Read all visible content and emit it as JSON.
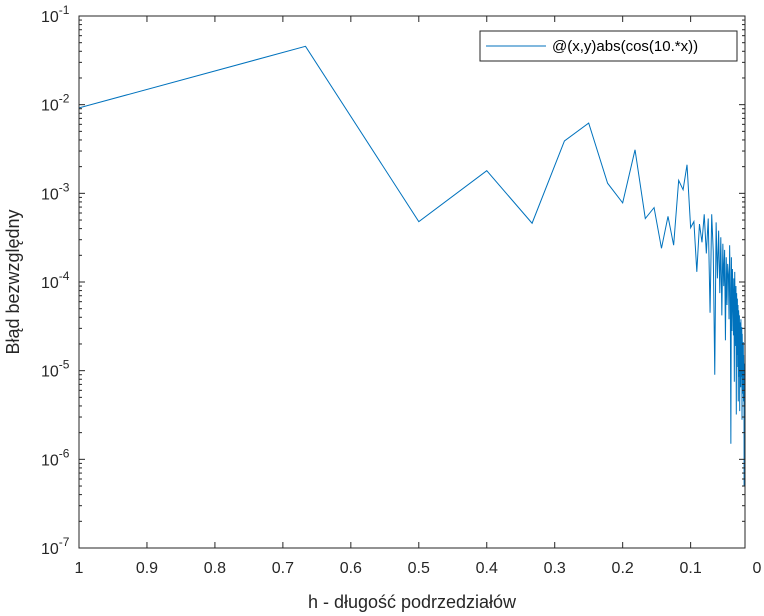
{
  "chart_data": {
    "type": "line",
    "title": "",
    "xlabel": "h - długość podrzedziałów",
    "ylabel": "Błąd bezwzględny",
    "x_scale": "linear",
    "x_reversed": true,
    "xlim": [
      0.02,
      1
    ],
    "y_scale": "log",
    "ylim": [
      1e-07,
      0.1
    ],
    "grid": false,
    "legend_position": "top-right",
    "x_ticks": [
      {
        "value": 1,
        "label": "1"
      },
      {
        "value": 0.9,
        "label": "0.9"
      },
      {
        "value": 0.8,
        "label": "0.8"
      },
      {
        "value": 0.7,
        "label": "0.7"
      },
      {
        "value": 0.6,
        "label": "0.6"
      },
      {
        "value": 0.5,
        "label": "0.5"
      },
      {
        "value": 0.4,
        "label": "0.4"
      },
      {
        "value": 0.3,
        "label": "0.3"
      },
      {
        "value": 0.2,
        "label": "0.2"
      },
      {
        "value": 0.1,
        "label": "0.1"
      },
      {
        "value": 0,
        "label": "0"
      }
    ],
    "y_ticks": [
      {
        "value": 1e-07,
        "base": "10",
        "exp": "-7"
      },
      {
        "value": 1e-06,
        "base": "10",
        "exp": "-6"
      },
      {
        "value": 1e-05,
        "base": "10",
        "exp": "-5"
      },
      {
        "value": 0.0001,
        "base": "10",
        "exp": "-4"
      },
      {
        "value": 0.001,
        "base": "10",
        "exp": "-3"
      },
      {
        "value": 0.01,
        "base": "10",
        "exp": "-2"
      },
      {
        "value": 0.1,
        "base": "10",
        "exp": "-1"
      }
    ],
    "series": [
      {
        "name": "@(x,y)abs(cos(10.*x))",
        "color": "#0072BD",
        "x": [
          1,
          0.6667,
          0.5,
          0.4,
          0.3333,
          0.2857,
          0.25,
          0.2222,
          0.2,
          0.1818,
          0.1667,
          0.1538,
          0.1429,
          0.1333,
          0.125,
          0.1176,
          0.1111,
          0.1053,
          0.1,
          0.0952,
          0.0909,
          0.087,
          0.0833,
          0.08,
          0.0769,
          0.0741,
          0.0714,
          0.069,
          0.0667,
          0.0645,
          0.0625,
          0.0606,
          0.0588,
          0.0571,
          0.0556,
          0.0541,
          0.0526,
          0.0513,
          0.05,
          0.0488,
          0.0476,
          0.0465,
          0.0455,
          0.0444,
          0.0435,
          0.0426,
          0.0417,
          0.0408,
          0.04,
          0.0392,
          0.0385,
          0.0377,
          0.037,
          0.0364,
          0.0357,
          0.0351,
          0.0345,
          0.0339,
          0.0333,
          0.0328,
          0.0323,
          0.0317,
          0.0312,
          0.0308,
          0.0303,
          0.0299,
          0.0294,
          0.029,
          0.0286,
          0.0282,
          0.0278,
          0.0274,
          0.027,
          0.0267,
          0.0263,
          0.026,
          0.0256,
          0.0253,
          0.025,
          0.0247,
          0.0244,
          0.0241,
          0.0238,
          0.0235,
          0.0233,
          0.023,
          0.0227,
          0.0225,
          0.0222,
          0.022,
          0.0217,
          0.0215,
          0.0213,
          0.0211,
          0.0208,
          0.0206,
          0.0204,
          0.0202,
          0.02
        ],
        "y": [
          0.0092,
          0.0455,
          0.00048,
          0.0018,
          0.00046,
          0.0039,
          0.0062,
          0.0013,
          0.00078,
          0.0031,
          0.00052,
          0.00069,
          0.00024,
          0.00055,
          0.00026,
          0.0014,
          0.0011,
          0.0021,
          0.00041,
          0.00048,
          0.00013,
          0.00045,
          0.00028,
          0.00058,
          0.00021,
          0.00052,
          4.5e-05,
          0.00058,
          0.00022,
          9e-06,
          0.00047,
          0.00011,
          0.00038,
          7.5e-05,
          0.00032,
          4.2e-05,
          0.00027,
          9e-05,
          0.00023,
          2.2e-05,
          0.00019,
          5.5e-05,
          0.00016,
          0.00012,
          3.8e-05,
          0.00026,
          8.5e-05,
          1.5e-06,
          0.00019,
          2.8e-05,
          0.00014,
          6e-05,
          2.5e-05,
          0.00011,
          7.5e-06,
          0.00013,
          4.6e-05,
          1.9e-05,
          9e-05,
          3.2e-06,
          7.5e-05,
          1.5e-05,
          6.5e-05,
          1.1e-05,
          5.5e-05,
          4.5e-06,
          4.8e-05,
          3.8e-05,
          8.5e-06,
          4.2e-05,
          3.5e-06,
          3.5e-05,
          1.6e-05,
          2.8e-05,
          6.5e-06,
          3.8e-05,
          1.2e-05,
          2.2e-05,
          8.5e-06,
          3.1e-05,
          2.8e-06,
          2.6e-05,
          1.4e-05,
          1.9e-05,
          5.5e-06,
          1.7e-05,
          9.5e-06,
          2.1e-05,
          4.5e-06,
          1.5e-05,
          6.8e-06,
          1.1e-05,
          5e-07,
          9e-06,
          3.8e-06,
          1.2e-05,
          2.5e-06,
          6.5e-06,
          2.9e-06
        ]
      }
    ]
  }
}
